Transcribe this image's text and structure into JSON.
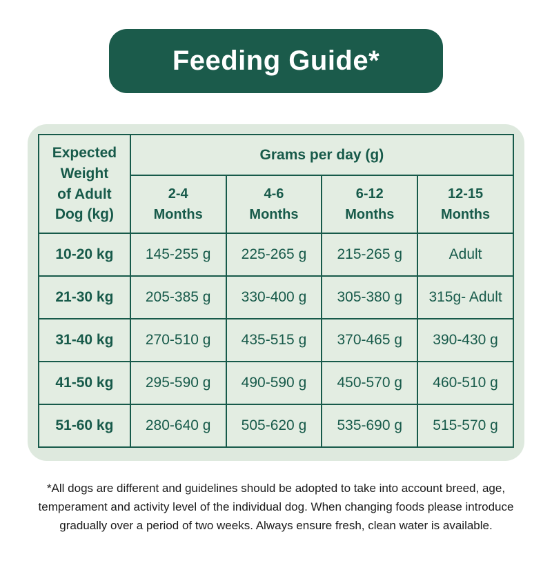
{
  "header": {
    "title": "Feeding Guide*"
  },
  "chart_data": {
    "type": "table",
    "title": "Feeding Guide*",
    "corner_header": "Expected\nWeight\nof Adult\nDog (kg)",
    "group_header": "Grams per day (g)",
    "columns": [
      "2-4\nMonths",
      "4-6\nMonths",
      "6-12\nMonths",
      "12-15\nMonths"
    ],
    "rows": [
      [
        "10-20 kg",
        "145-255 g",
        "225-265 g",
        "215-265 g",
        "Adult"
      ],
      [
        "21-30 kg",
        "205-385 g",
        "330-400 g",
        "305-380 g",
        "315g- Adult"
      ],
      [
        "31-40 kg",
        "270-510 g",
        "435-515 g",
        "370-465 g",
        "390-430 g"
      ],
      [
        "41-50 kg",
        "295-590 g",
        "490-590 g",
        "450-570 g",
        "460-510 g"
      ],
      [
        "51-60 kg",
        "280-640 g",
        "505-620 g",
        "535-690 g",
        "515-570 g"
      ]
    ]
  },
  "footnote": "*All dogs are different and guidelines should be adopted to take into account breed, age,\ntemperament and activity level of the individual dog. When changing foods please introduce\ngradually over a period of two weeks. Always ensure fresh, clean water is available.",
  "colors": {
    "dark_green": "#1B5B4B",
    "text_green": "#175A4A",
    "panel_green": "#DEE9DE",
    "cell_green": "#E3EDE2",
    "title_color": "#FFFFFF",
    "footnote_color": "#1A1A1A",
    "page_bg": "#FFFFFF"
  }
}
